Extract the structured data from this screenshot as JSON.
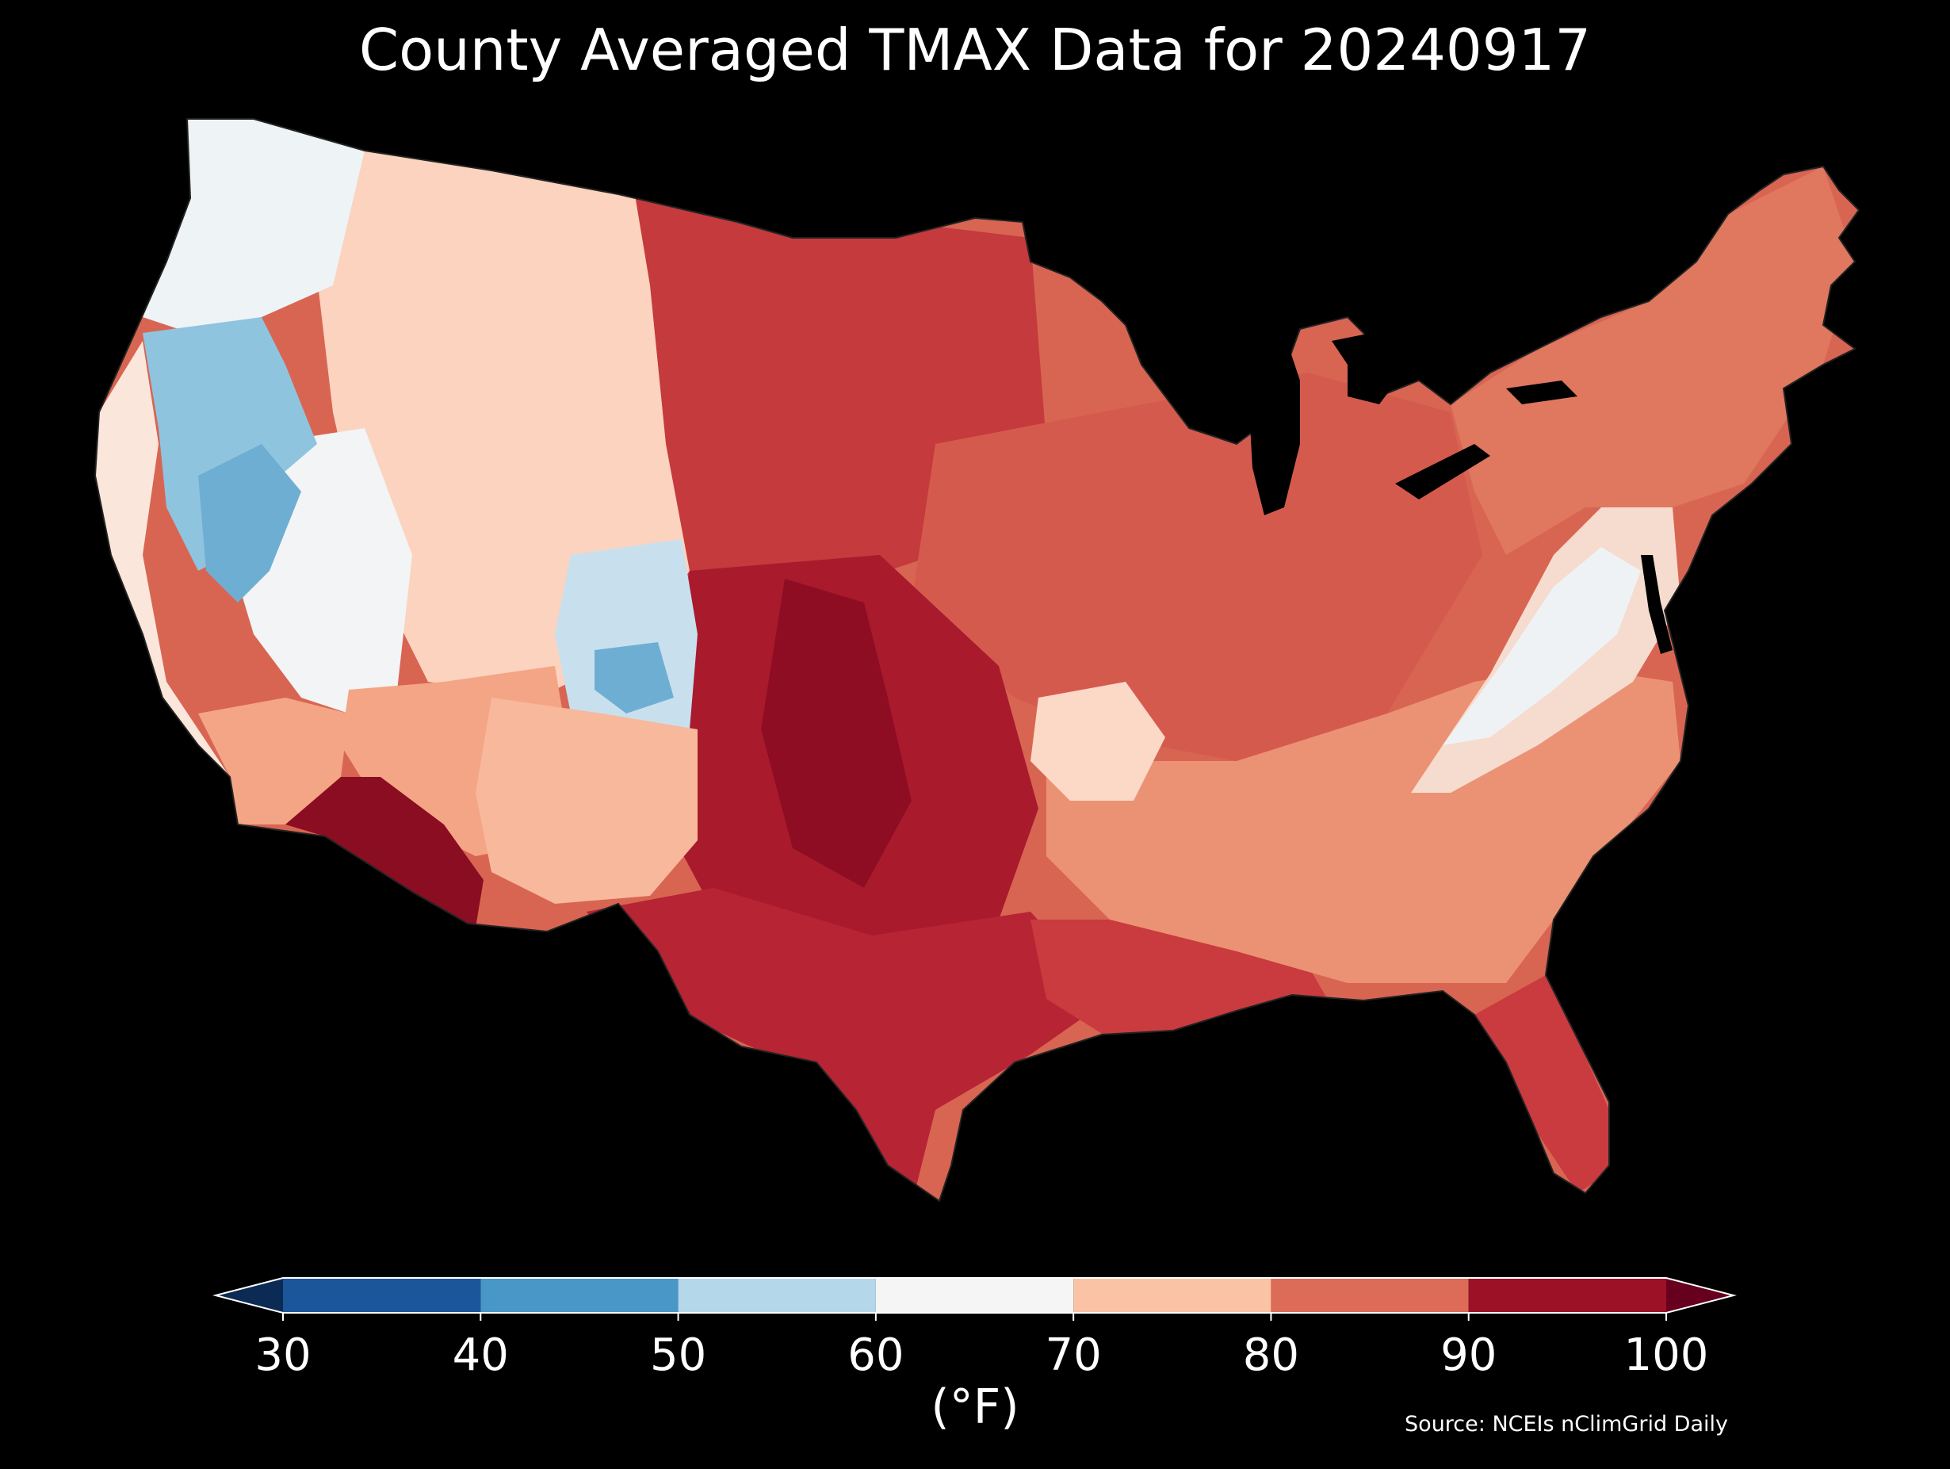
{
  "title": "County Averaged TMAX Data for 20240917",
  "colorbar": {
    "unit_label": "(°F)",
    "ticks": [
      "30",
      "40",
      "50",
      "60",
      "70",
      "80",
      "90",
      "100"
    ],
    "bins": [
      {
        "range": [
          30,
          40
        ],
        "color": "#1b569b"
      },
      {
        "range": [
          40,
          50
        ],
        "color": "#4997c7"
      },
      {
        "range": [
          50,
          60
        ],
        "color": "#b5d7ea"
      },
      {
        "range": [
          60,
          70
        ],
        "color": "#f5f5f5"
      },
      {
        "range": [
          70,
          80
        ],
        "color": "#fbc3a5"
      },
      {
        "range": [
          80,
          90
        ],
        "color": "#dc6c58"
      },
      {
        "range": [
          90,
          100
        ],
        "color": "#9d1127"
      }
    ],
    "under_color": "#0b2a54",
    "over_color": "#67001f",
    "extend": "both"
  },
  "source": "Source: NCEIs nClimGrid Daily",
  "map": {
    "background": "#000000",
    "regions": [
      {
        "name": "pacific-northwest-coast",
        "value": 62,
        "color": "#eef3f6"
      },
      {
        "name": "northern-california-interior",
        "value": 48,
        "color": "#8fc4df"
      },
      {
        "name": "sierra-nevada",
        "value": 45,
        "color": "#6faed3"
      },
      {
        "name": "great-basin",
        "value": 63,
        "color": "#f2f4f5"
      },
      {
        "name": "northern-rockies",
        "value": 70,
        "color": "#fde2d4"
      },
      {
        "name": "colorado-rockies",
        "value": 50,
        "color": "#c8e0ee"
      },
      {
        "name": "desert-southwest",
        "value": 95,
        "color": "#8b0d22"
      },
      {
        "name": "new-mexico",
        "value": 75,
        "color": "#f4a585"
      },
      {
        "name": "northern-plains",
        "value": 88,
        "color": "#c53a3c"
      },
      {
        "name": "southern-plains",
        "value": 95,
        "color": "#8f0d23"
      },
      {
        "name": "texas-gulf",
        "value": 90,
        "color": "#b72434"
      },
      {
        "name": "midwest",
        "value": 85,
        "color": "#d55a4e"
      },
      {
        "name": "ozarks",
        "value": 70,
        "color": "#fbd9c6"
      },
      {
        "name": "southeast",
        "value": 80,
        "color": "#ec9274"
      },
      {
        "name": "appalachians",
        "value": 63,
        "color": "#eef2f5"
      },
      {
        "name": "northeast",
        "value": 80,
        "color": "#e0775f"
      },
      {
        "name": "florida",
        "value": 88,
        "color": "#c93b3f"
      }
    ]
  }
}
